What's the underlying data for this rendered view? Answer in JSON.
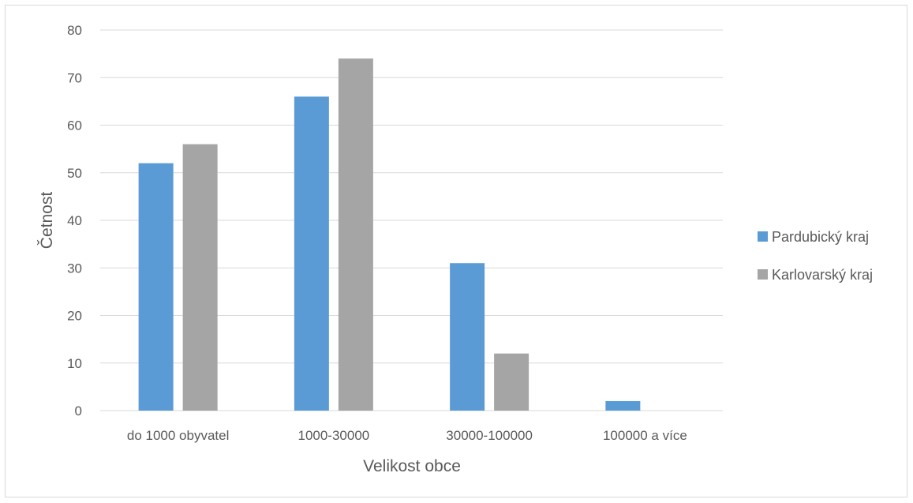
{
  "chart_data": {
    "type": "bar",
    "title": "",
    "xlabel": "Velikost obce",
    "ylabel": "Četnost",
    "categories": [
      "do 1000 obyvatel",
      "1000-30000",
      "30000-100000",
      "100000 a více"
    ],
    "series": [
      {
        "name": "Pardubický kraj",
        "color": "#5b9bd5",
        "values": [
          52,
          66,
          31,
          2
        ]
      },
      {
        "name": "Karlovarský kraj",
        "color": "#a5a5a5",
        "values": [
          56,
          74,
          12,
          0
        ]
      }
    ],
    "ylim": [
      0,
      80
    ],
    "yticks": [
      0,
      10,
      20,
      30,
      40,
      50,
      60,
      70,
      80
    ],
    "grid": true,
    "legend_position": "right",
    "gridline_color": "#d9d9d9",
    "axis_color": "#d9d9d9"
  }
}
